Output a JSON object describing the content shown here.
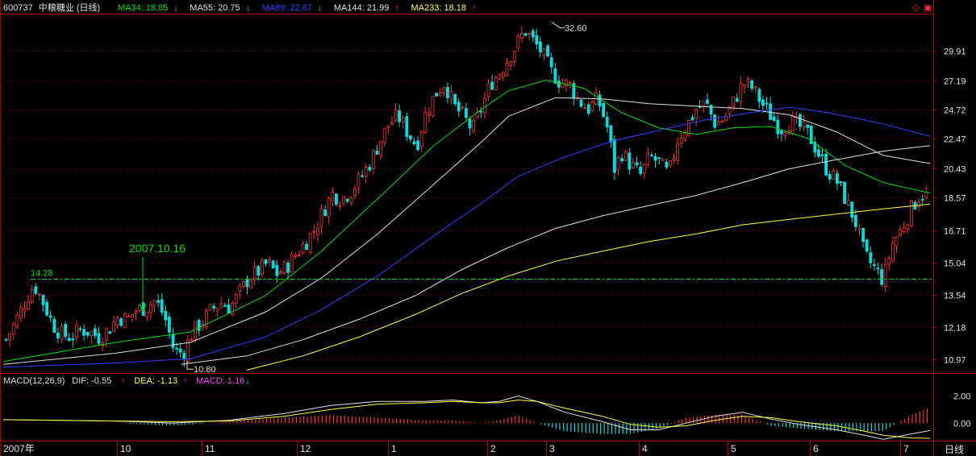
{
  "header": {
    "code": "600737",
    "name": "中粮糖业",
    "period": "(日线)",
    "ma": [
      {
        "label": "MA34: 18.85",
        "arrow": "↓",
        "color": "#00e000",
        "arrow_color": "#00e0e0"
      },
      {
        "label": "MA55: 20.75",
        "arrow": "↓",
        "color": "#e0e0e0",
        "arrow_color": "#00e0e0"
      },
      {
        "label": "MA89: 22.67",
        "arrow": "↓",
        "color": "#3040ff",
        "arrow_color": "#00e0e0"
      },
      {
        "label": "MA144: 21.99",
        "arrow": "↑",
        "color": "#e0e0e0",
        "arrow_color": "#ff3030"
      },
      {
        "label": "MA233: 18.18",
        "arrow": "↑",
        "color": "#ffff40",
        "arrow_color": "#ff3030"
      }
    ]
  },
  "window_controls": {
    "diamond_icon": "◇",
    "restore_icon": "▣"
  },
  "price_axis": {
    "ticks": [
      "29.91",
      "27.19",
      "24.72",
      "22.47",
      "20.43",
      "18.57",
      "16.71",
      "15.04",
      "13.54",
      "12.18",
      "10.97"
    ]
  },
  "macd_axis": {
    "ticks": [
      "2.00",
      "0.00"
    ]
  },
  "annotations": {
    "high": "32.60",
    "low": "10.80",
    "left_high": "14.28",
    "date_mark": "2007.10.16"
  },
  "macd_header": [
    {
      "label": "MACD(12,26,9)",
      "arrow": "",
      "color": "#e0e0e0",
      "arrow_color": "#e0e0e0"
    },
    {
      "label": "DIF: -0.55",
      "arrow": "↑",
      "color": "#e0e0e0",
      "arrow_color": "#ff3030"
    },
    {
      "label": "DEA: -1.13",
      "arrow": "↑",
      "color": "#ffff40",
      "arrow_color": "#ff3030"
    },
    {
      "label": "MACD: 1.16",
      "arrow": "↓",
      "color": "#ff40ff",
      "arrow_color": "#00e0e0"
    }
  ],
  "time_axis": {
    "labels": [
      "2007年",
      "10",
      "11",
      "12",
      "1",
      "2",
      "3",
      "4",
      "5",
      "6",
      "7"
    ],
    "period_button": "日线"
  },
  "colors": {
    "background": "#000000",
    "grid": "#7a0000",
    "axis": "#b00000",
    "up": "#ff3030",
    "down": "#00e0e0",
    "ma34": "#00e000",
    "ma55": "#e0e0e0",
    "ma89": "#3040ff",
    "ma144": "#e0e0e0",
    "ma233": "#ffff40",
    "mark": "#00e000"
  },
  "chart_data": {
    "type": "candlestick",
    "price_scale": [
      10.5,
      33.5
    ],
    "month_labels": [
      "10",
      "11",
      "12",
      "1",
      "2",
      "3",
      "4",
      "5",
      "6",
      "7"
    ],
    "high_value": 32.6,
    "low_value": 10.8,
    "left_high_value": 14.28,
    "close_path": [
      [
        0,
        11.7
      ],
      [
        5,
        12.4
      ],
      [
        10,
        13.2
      ],
      [
        15,
        14.0
      ],
      [
        20,
        13.2
      ],
      [
        25,
        12.3
      ],
      [
        30,
        11.9
      ],
      [
        35,
        11.8
      ],
      [
        40,
        12.1
      ],
      [
        45,
        12.0
      ],
      [
        50,
        11.8
      ],
      [
        55,
        12.1
      ],
      [
        60,
        12.6
      ],
      [
        65,
        12.5
      ],
      [
        70,
        12.9
      ],
      [
        75,
        13.0
      ],
      [
        80,
        13.3
      ],
      [
        85,
        12.6
      ],
      [
        90,
        11.3
      ],
      [
        95,
        11.2
      ],
      [
        100,
        12.0
      ],
      [
        105,
        12.4
      ],
      [
        110,
        12.9
      ],
      [
        115,
        13.2
      ],
      [
        120,
        13.0
      ],
      [
        125,
        13.6
      ],
      [
        130,
        14.3
      ],
      [
        135,
        14.6
      ],
      [
        140,
        15.0
      ],
      [
        145,
        14.5
      ],
      [
        150,
        14.8
      ],
      [
        155,
        15.4
      ],
      [
        160,
        16.0
      ],
      [
        165,
        16.7
      ],
      [
        170,
        17.8
      ],
      [
        175,
        18.8
      ],
      [
        180,
        18.5
      ],
      [
        185,
        19.0
      ],
      [
        190,
        19.8
      ],
      [
        195,
        20.8
      ],
      [
        200,
        22.2
      ],
      [
        205,
        23.6
      ],
      [
        210,
        24.2
      ],
      [
        215,
        23.0
      ],
      [
        220,
        22.0
      ],
      [
        225,
        24.5
      ],
      [
        230,
        26.0
      ],
      [
        235,
        27.0
      ],
      [
        240,
        25.0
      ],
      [
        245,
        24.2
      ],
      [
        250,
        23.1
      ],
      [
        255,
        25.0
      ],
      [
        260,
        27.0
      ],
      [
        265,
        28.0
      ],
      [
        270,
        29.5
      ],
      [
        275,
        31.0
      ],
      [
        278,
        32.0
      ],
      [
        282,
        31.0
      ],
      [
        287,
        29.8
      ],
      [
        292,
        28.0
      ],
      [
        297,
        27.0
      ],
      [
        302,
        26.8
      ],
      [
        307,
        25.4
      ],
      [
        312,
        24.8
      ],
      [
        317,
        25.6
      ],
      [
        322,
        23.4
      ],
      [
        326,
        20.4
      ],
      [
        330,
        21.5
      ],
      [
        335,
        20.6
      ],
      [
        340,
        20.0
      ],
      [
        345,
        21.2
      ],
      [
        350,
        20.8
      ],
      [
        355,
        20.0
      ],
      [
        360,
        22.5
      ],
      [
        365,
        23.5
      ],
      [
        370,
        24.8
      ],
      [
        375,
        25.2
      ],
      [
        380,
        23.6
      ],
      [
        385,
        24.0
      ],
      [
        390,
        25.4
      ],
      [
        395,
        27.0
      ],
      [
        400,
        26.5
      ],
      [
        405,
        25.2
      ],
      [
        410,
        24.2
      ],
      [
        415,
        23.2
      ],
      [
        420,
        23.8
      ],
      [
        425,
        23.4
      ],
      [
        430,
        22.8
      ],
      [
        435,
        21.5
      ],
      [
        440,
        20.3
      ],
      [
        445,
        19.6
      ],
      [
        450,
        18.4
      ],
      [
        455,
        17.2
      ],
      [
        460,
        15.4
      ],
      [
        465,
        14.8
      ],
      [
        470,
        14.2
      ],
      [
        475,
        16.0
      ],
      [
        480,
        16.8
      ],
      [
        485,
        17.9
      ],
      [
        490,
        18.8
      ],
      [
        495,
        18.6
      ]
    ],
    "candle_count": 495,
    "series": [
      {
        "name": "MA34",
        "values": [
          [
            0,
            10.9
          ],
          [
            60,
            11.6
          ],
          [
            100,
            12.0
          ],
          [
            140,
            13.5
          ],
          [
            170,
            15.6
          ],
          [
            200,
            18.5
          ],
          [
            230,
            22.0
          ],
          [
            255,
            24.7
          ],
          [
            270,
            26.3
          ],
          [
            290,
            27.2
          ],
          [
            310,
            26.5
          ],
          [
            330,
            24.5
          ],
          [
            350,
            23.3
          ],
          [
            370,
            22.8
          ],
          [
            390,
            23.3
          ],
          [
            410,
            23.4
          ],
          [
            430,
            22.5
          ],
          [
            450,
            20.6
          ],
          [
            470,
            19.5
          ],
          [
            495,
            18.85
          ]
        ]
      },
      {
        "name": "MA55",
        "values": [
          [
            0,
            10.8
          ],
          [
            60,
            11.2
          ],
          [
            100,
            11.6
          ],
          [
            140,
            12.8
          ],
          [
            170,
            14.3
          ],
          [
            200,
            16.5
          ],
          [
            230,
            19.4
          ],
          [
            255,
            22.2
          ],
          [
            270,
            24.2
          ],
          [
            295,
            25.7
          ],
          [
            320,
            25.6
          ],
          [
            345,
            25.2
          ],
          [
            370,
            25.0
          ],
          [
            395,
            24.8
          ],
          [
            420,
            24.3
          ],
          [
            445,
            23.0
          ],
          [
            470,
            21.3
          ],
          [
            495,
            20.75
          ]
        ]
      },
      {
        "name": "MA89",
        "values": [
          [
            0,
            10.7
          ],
          [
            60,
            10.85
          ],
          [
            100,
            11.0
          ],
          [
            140,
            11.8
          ],
          [
            170,
            12.9
          ],
          [
            200,
            14.4
          ],
          [
            230,
            16.4
          ],
          [
            255,
            18.2
          ],
          [
            275,
            19.9
          ],
          [
            300,
            21.2
          ],
          [
            325,
            22.3
          ],
          [
            350,
            23.1
          ],
          [
            375,
            23.9
          ],
          [
            400,
            24.5
          ],
          [
            420,
            24.9
          ],
          [
            440,
            24.5
          ],
          [
            470,
            23.6
          ],
          [
            495,
            22.67
          ]
        ]
      },
      {
        "name": "MA144",
        "values": [
          [
            95,
            10.8
          ],
          [
            130,
            11.1
          ],
          [
            160,
            11.7
          ],
          [
            190,
            12.5
          ],
          [
            220,
            13.5
          ],
          [
            245,
            14.7
          ],
          [
            270,
            15.8
          ],
          [
            295,
            16.8
          ],
          [
            320,
            17.5
          ],
          [
            345,
            18.1
          ],
          [
            370,
            18.7
          ],
          [
            395,
            19.5
          ],
          [
            420,
            20.4
          ],
          [
            445,
            21.0
          ],
          [
            470,
            21.6
          ],
          [
            495,
            21.99
          ]
        ]
      },
      {
        "name": "MA233",
        "values": [
          [
            130,
            10.6
          ],
          [
            160,
            11.1
          ],
          [
            190,
            11.8
          ],
          [
            220,
            12.7
          ],
          [
            245,
            13.6
          ],
          [
            270,
            14.4
          ],
          [
            295,
            15.1
          ],
          [
            320,
            15.6
          ],
          [
            345,
            16.1
          ],
          [
            370,
            16.5
          ],
          [
            395,
            17.0
          ],
          [
            420,
            17.3
          ],
          [
            445,
            17.6
          ],
          [
            470,
            17.9
          ],
          [
            495,
            18.18
          ]
        ]
      }
    ],
    "macd_scale": [
      -1.3,
      2.8
    ],
    "macd": {
      "dif": [
        [
          0,
          0.25
        ],
        [
          30,
          0.2
        ],
        [
          60,
          0.15
        ],
        [
          90,
          0.0
        ],
        [
          120,
          0.2
        ],
        [
          150,
          0.7
        ],
        [
          175,
          1.3
        ],
        [
          200,
          1.6
        ],
        [
          225,
          1.6
        ],
        [
          240,
          1.7
        ],
        [
          255,
          1.5
        ],
        [
          265,
          1.6
        ],
        [
          275,
          2.0
        ],
        [
          285,
          1.6
        ],
        [
          300,
          0.8
        ],
        [
          320,
          0.1
        ],
        [
          335,
          -0.5
        ],
        [
          350,
          -0.5
        ],
        [
          365,
          0.0
        ],
        [
          380,
          0.5
        ],
        [
          395,
          0.8
        ],
        [
          410,
          0.3
        ],
        [
          425,
          -0.1
        ],
        [
          445,
          -0.5
        ],
        [
          460,
          -0.9
        ],
        [
          470,
          -1.2
        ],
        [
          485,
          -0.8
        ],
        [
          495,
          -0.55
        ]
      ],
      "dea": [
        [
          0,
          0.25
        ],
        [
          30,
          0.2
        ],
        [
          60,
          0.15
        ],
        [
          90,
          0.1
        ],
        [
          120,
          0.15
        ],
        [
          150,
          0.5
        ],
        [
          175,
          1.0
        ],
        [
          200,
          1.4
        ],
        [
          225,
          1.5
        ],
        [
          240,
          1.6
        ],
        [
          255,
          1.5
        ],
        [
          265,
          1.5
        ],
        [
          275,
          1.7
        ],
        [
          285,
          1.6
        ],
        [
          300,
          1.1
        ],
        [
          320,
          0.5
        ],
        [
          335,
          -0.1
        ],
        [
          350,
          -0.3
        ],
        [
          365,
          -0.2
        ],
        [
          380,
          0.2
        ],
        [
          395,
          0.5
        ],
        [
          410,
          0.4
        ],
        [
          425,
          0.1
        ],
        [
          445,
          -0.2
        ],
        [
          460,
          -0.6
        ],
        [
          470,
          -0.9
        ],
        [
          485,
          -1.1
        ],
        [
          495,
          -1.13
        ]
      ]
    }
  }
}
